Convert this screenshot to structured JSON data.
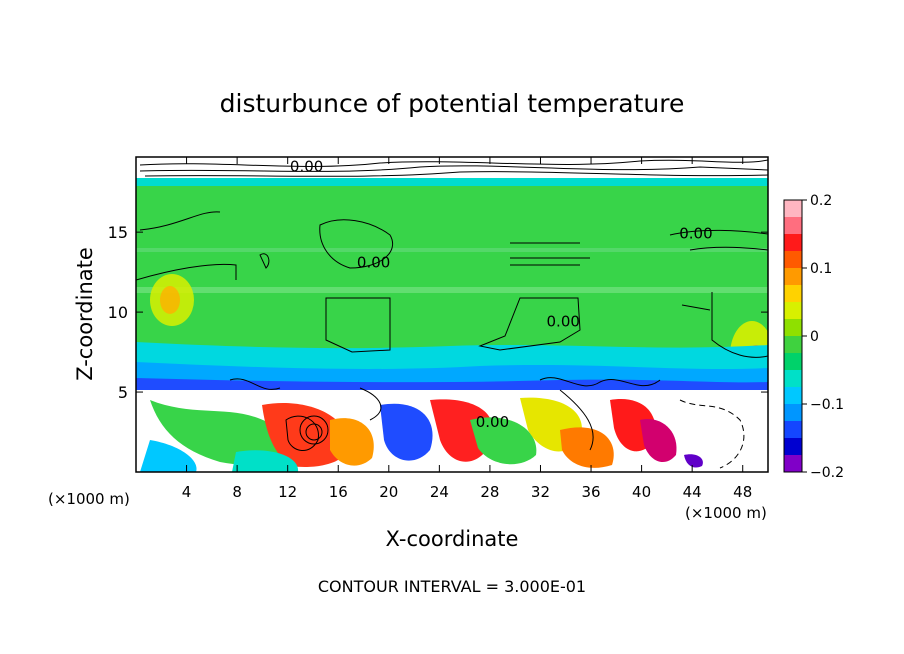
{
  "chart_data": {
    "type": "heatmap",
    "title": "disturbunce of potential temperature",
    "xlabel": "X-coordinate",
    "ylabel": "Z-coordinate",
    "x_unit": "(×1000 m)",
    "y_unit": "(×1000 m)",
    "xlim": [
      0,
      50
    ],
    "ylim": [
      0,
      19.7
    ],
    "x_ticks": [
      4,
      8,
      12,
      16,
      20,
      24,
      28,
      32,
      36,
      40,
      44,
      48
    ],
    "y_ticks": [
      5,
      10,
      15
    ],
    "footer": "CONTOUR INTERVAL = 3.000E-01",
    "contour_labels": [
      {
        "text": "0.00",
        "x": 18.8,
        "z": 12.8
      },
      {
        "text": "0.00",
        "x": 33.8,
        "z": 9.1
      },
      {
        "text": "0.00",
        "x": 44.3,
        "z": 14.6
      },
      {
        "text": "0.00",
        "x": 28.2,
        "z": 2.8
      },
      {
        "text": "0.00",
        "x": 13.5,
        "z": 18.8
      }
    ],
    "colorbar": {
      "min": -0.2,
      "max": 0.2,
      "tick_values": [
        0.2,
        0.1,
        0,
        -0.1,
        -0.2
      ],
      "tick_labels": [
        "0.2",
        "0.1",
        "0",
        "−0.1",
        "−0.2"
      ],
      "colors": [
        "#ffb6c1",
        "#ff6e7f",
        "#ff1a1a",
        "#ff5a00",
        "#ff9a00",
        "#ffd200",
        "#d8f000",
        "#8fe000",
        "#3fd23f",
        "#00d26a",
        "#00e0c8",
        "#00c8ff",
        "#0096ff",
        "#1446ff",
        "#0000d0",
        "#8000c8"
      ]
    },
    "field_colors": {
      "upper_layer": "#38d449",
      "tropopause_band": "#00e4ee",
      "lower_band": "#00b0ff",
      "warm": "#ff8c00",
      "hot": "#ff1a1a",
      "cold": "#1f3cff"
    }
  }
}
